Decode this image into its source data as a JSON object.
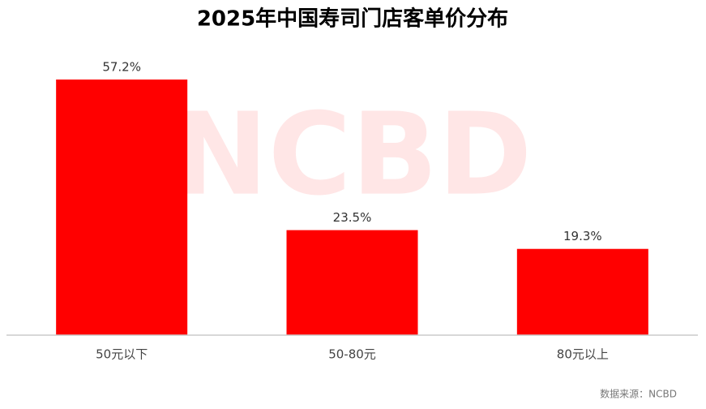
{
  "chart_data": {
    "type": "bar",
    "title": "2025年中国寿司门店客单价分布",
    "categories": [
      "50元以下",
      "50-80元",
      "80元以上"
    ],
    "values": [
      57.2,
      23.5,
      19.3
    ],
    "value_labels": [
      "57.2%",
      "23.5%",
      "19.3%"
    ],
    "color": "#ff0000",
    "watermark": "NCBD",
    "source": "数据来源：NCBD"
  }
}
